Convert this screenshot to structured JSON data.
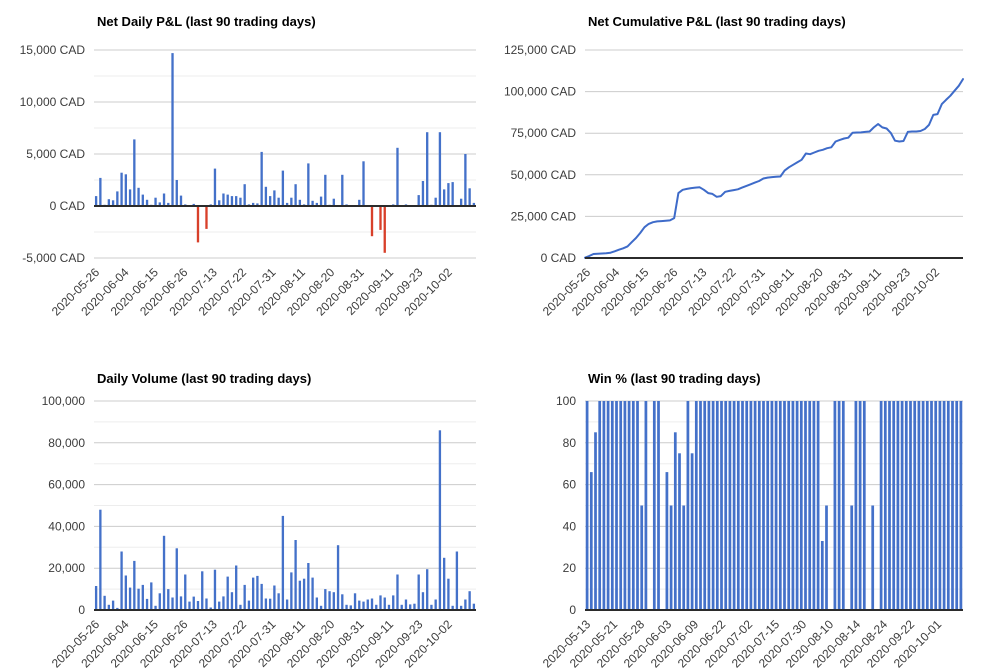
{
  "colors": {
    "bar_blue": "#4471C9",
    "line_blue": "#3E6BC9",
    "negative_red": "#D8402A",
    "gridline": "#CCCCCC",
    "gridline_minor": "#EDEDED",
    "axis": "#2B2B2B",
    "tick_text": "#3C3C3C",
    "title_text": "#000000",
    "background": "#FFFFFF"
  },
  "chart_data": [
    {
      "type": "bar",
      "title": "Net Daily P&L (last 90 trading days)",
      "unit": "CAD",
      "ylim": [
        -5000,
        15000
      ],
      "y_ticks": [
        {
          "value": 15000,
          "label": "15,000 CAD"
        },
        {
          "value": 10000,
          "label": "10,000 CAD"
        },
        {
          "value": 5000,
          "label": "5,000 CAD"
        },
        {
          "value": 0,
          "label": "0 CAD"
        },
        {
          "value": -5000,
          "label": "-5,000 CAD"
        }
      ],
      "x_labels": [
        "2020-05-26",
        "2020-06-04",
        "2020-06-15",
        "2020-06-26",
        "2020-07-13",
        "2020-07-22",
        "2020-07-31",
        "2020-08-11",
        "2020-08-20",
        "2020-08-31",
        "2020-09-11",
        "2020-09-23",
        "2020-10-02"
      ],
      "values": [
        950,
        2700,
        120,
        650,
        550,
        1400,
        3200,
        3050,
        1600,
        6400,
        1750,
        1100,
        600,
        120,
        800,
        350,
        1200,
        300,
        14700,
        2500,
        1000,
        150,
        100,
        200,
        -3500,
        100,
        -2200,
        150,
        3600,
        550,
        1200,
        1100,
        950,
        950,
        800,
        2100,
        150,
        300,
        250,
        5200,
        1850,
        950,
        1500,
        800,
        3400,
        300,
        800,
        2100,
        600,
        150,
        4100,
        500,
        300,
        900,
        3000,
        120,
        700,
        100,
        3000,
        150,
        100,
        80,
        600,
        4300,
        100,
        -2900,
        100,
        -2300,
        -4500,
        100,
        150,
        5600,
        100,
        150,
        100,
        100,
        1050,
        2400,
        7100,
        120,
        800,
        7100,
        1600,
        2200,
        2300,
        100,
        700,
        5000,
        1700,
        300
      ]
    },
    {
      "type": "line",
      "title": "Net Cumulative P&L (last 90 trading days)",
      "unit": "CAD",
      "ylim": [
        0,
        125000
      ],
      "y_ticks": [
        {
          "value": 125000,
          "label": "125,000 CAD"
        },
        {
          "value": 100000,
          "label": "100,000 CAD"
        },
        {
          "value": 75000,
          "label": "75,000 CAD"
        },
        {
          "value": 50000,
          "label": "50,000 CAD"
        },
        {
          "value": 25000,
          "label": "25,000 CAD"
        },
        {
          "value": 0,
          "label": "0 CAD"
        }
      ],
      "x_labels": [
        "2020-05-26",
        "2020-06-04",
        "2020-06-15",
        "2020-06-26",
        "2020-07-13",
        "2020-07-22",
        "2020-07-31",
        "2020-08-11",
        "2020-08-20",
        "2020-08-31",
        "2020-09-11",
        "2020-09-23",
        "2020-10-02"
      ],
      "values": [
        200,
        1200,
        2400,
        2600,
        2700,
        2800,
        3200,
        4000,
        5000,
        5800,
        7000,
        9500,
        12000,
        15000,
        18500,
        20500,
        21500,
        22000,
        22200,
        22400,
        22600,
        24000,
        39000,
        41000,
        41500,
        42000,
        42300,
        42500,
        41000,
        39000,
        38500,
        36800,
        37200,
        39800,
        40300,
        40800,
        41300,
        42300,
        43300,
        44300,
        45300,
        46300,
        47800,
        48300,
        48600,
        48800,
        49000,
        52500,
        54500,
        56000,
        57500,
        59000,
        62800,
        62400,
        63400,
        64400,
        65000,
        66000,
        66500,
        70000,
        71000,
        71800,
        72300,
        75300,
        75400,
        75500,
        75800,
        76000,
        78500,
        80500,
        78500,
        77800,
        75200,
        70500,
        70000,
        70300,
        75800,
        76000,
        76000,
        76300,
        77500,
        80000,
        86000,
        86500,
        92500,
        95000,
        97500,
        100500,
        103500,
        107500
      ]
    },
    {
      "type": "bar",
      "title": "Daily Volume (last 90 trading days)",
      "unit": "shares",
      "ylim": [
        0,
        100000
      ],
      "y_ticks": [
        {
          "value": 100000,
          "label": "100,000"
        },
        {
          "value": 80000,
          "label": "80,000"
        },
        {
          "value": 60000,
          "label": "60,000"
        },
        {
          "value": 40000,
          "label": "40,000"
        },
        {
          "value": 20000,
          "label": "20,000"
        },
        {
          "value": 0,
          "label": "0"
        }
      ],
      "x_labels": [
        "2020-05-26",
        "2020-06-04",
        "2020-06-15",
        "2020-06-26",
        "2020-07-13",
        "2020-07-22",
        "2020-07-31",
        "2020-08-11",
        "2020-08-20",
        "2020-08-31",
        "2020-09-11",
        "2020-09-23",
        "2020-10-02"
      ],
      "values": [
        11500,
        48000,
        6800,
        2500,
        4500,
        1000,
        28000,
        16500,
        10700,
        23500,
        10200,
        12000,
        5300,
        13200,
        2000,
        8000,
        35500,
        10000,
        6000,
        29500,
        6500,
        17000,
        4000,
        6400,
        4300,
        18500,
        5500,
        1200,
        19300,
        4000,
        6500,
        16000,
        8500,
        21300,
        2500,
        12000,
        4500,
        15500,
        16300,
        12500,
        5500,
        5400,
        11700,
        8000,
        45000,
        5000,
        18000,
        33500,
        14000,
        15000,
        22500,
        15500,
        6000,
        2000,
        10000,
        9000,
        8500,
        31000,
        7500,
        2500,
        2200,
        8000,
        4500,
        4000,
        5000,
        5500,
        2500,
        7000,
        6000,
        2500,
        7000,
        17000,
        2500,
        5000,
        2700,
        3000,
        17000,
        8500,
        19500,
        2500,
        5000,
        86000,
        25000,
        15000,
        2000,
        28000,
        2000,
        5000,
        9000,
        3000
      ]
    },
    {
      "type": "bar",
      "title": "Win % (last 90 trading days)",
      "unit": "%",
      "ylim": [
        0,
        100
      ],
      "y_ticks": [
        {
          "value": 100,
          "label": "100"
        },
        {
          "value": 80,
          "label": "80"
        },
        {
          "value": 60,
          "label": "60"
        },
        {
          "value": 40,
          "label": "40"
        },
        {
          "value": 20,
          "label": "20"
        },
        {
          "value": 0,
          "label": "0"
        }
      ],
      "x_labels": [
        "2020-05-13",
        "2020-05-21",
        "2020-05-28",
        "2020-06-03",
        "2020-06-09",
        "2020-06-22",
        "2020-07-02",
        "2020-07-15",
        "2020-07-30",
        "2020-08-10",
        "2020-08-14",
        "2020-08-24",
        "2020-09-22",
        "2020-10-01"
      ],
      "values": [
        100,
        66,
        85,
        100,
        100,
        100,
        100,
        100,
        100,
        100,
        100,
        100,
        100,
        50,
        100,
        0,
        100,
        100,
        0,
        66,
        50,
        85,
        75,
        50,
        100,
        75,
        100,
        100,
        100,
        100,
        100,
        100,
        100,
        100,
        100,
        100,
        100,
        100,
        100,
        100,
        100,
        100,
        100,
        100,
        100,
        100,
        100,
        100,
        100,
        100,
        100,
        100,
        100,
        100,
        100,
        100,
        33,
        50,
        0,
        100,
        100,
        100,
        0,
        50,
        100,
        100,
        100,
        0,
        50,
        0,
        100,
        100,
        100,
        100,
        100,
        100,
        100,
        100,
        100,
        100,
        100,
        100,
        100,
        100,
        100,
        100,
        100,
        100,
        100,
        100
      ]
    }
  ]
}
